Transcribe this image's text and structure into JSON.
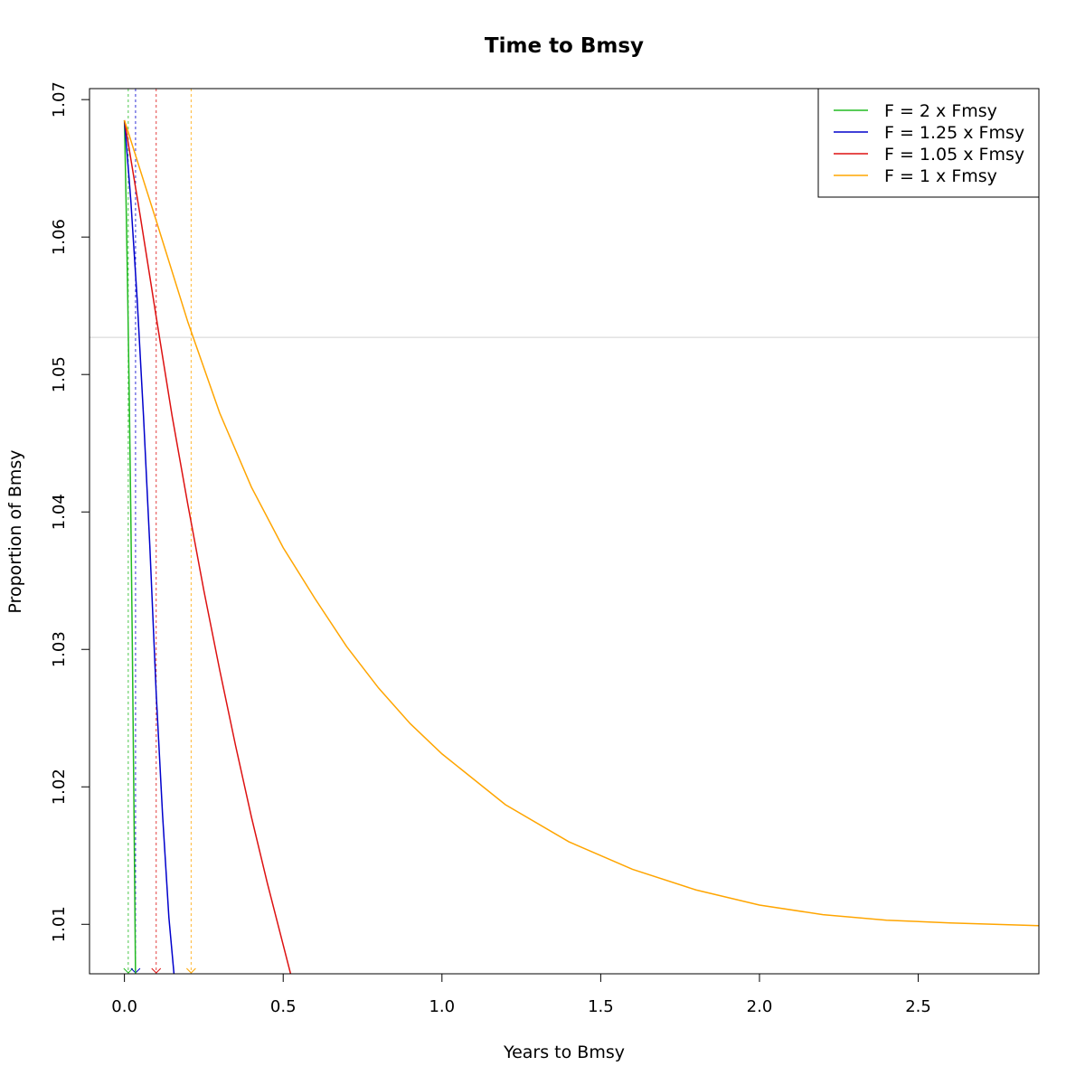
{
  "chart_data": {
    "type": "line",
    "title": "Time to Bmsy",
    "xlabel": "Years to Bmsy",
    "ylabel": "Proportion of Bmsy",
    "xlim": [
      -0.11,
      2.88
    ],
    "ylim": [
      1.0064,
      1.0708
    ],
    "x_ticks": [
      0.0,
      0.5,
      1.0,
      1.5,
      2.0,
      2.5
    ],
    "x_tick_labels": [
      "0.0",
      "0.5",
      "1.0",
      "1.5",
      "2.0",
      "2.5"
    ],
    "y_ticks": [
      1.01,
      1.02,
      1.03,
      1.04,
      1.05,
      1.06,
      1.07
    ],
    "y_tick_labels": [
      "1.01",
      "1.02",
      "1.03",
      "1.04",
      "1.05",
      "1.06",
      "1.07"
    ],
    "grid": false,
    "legend_position": "top-right",
    "reference_line": {
      "y": 1.0527,
      "color": "#d3d3d3"
    },
    "series": [
      {
        "name": "F = 2 x Fmsy",
        "color": "#22bb22",
        "x": [
          0.0,
          0.005,
          0.01,
          0.015,
          0.02,
          0.025,
          0.03,
          0.035,
          0.0375
        ],
        "y": [
          1.0685,
          1.0628,
          1.0562,
          1.0487,
          1.04,
          1.03,
          1.0185,
          1.006,
          1.0064
        ],
        "time_to_bmsy": 0.012
      },
      {
        "name": "F = 1.25 x Fmsy",
        "color": "#0000cc",
        "x": [
          0.0,
          0.02,
          0.04,
          0.06,
          0.08,
          0.1,
          0.12,
          0.14,
          0.156
        ],
        "y": [
          1.0685,
          1.0627,
          1.0555,
          1.047,
          1.0375,
          1.0268,
          1.018,
          1.0105,
          1.0064
        ],
        "time_to_bmsy": 0.035
      },
      {
        "name": "F = 1.05 x Fmsy",
        "color": "#dd1111",
        "x": [
          0.0,
          0.05,
          0.1,
          0.15,
          0.2,
          0.25,
          0.3,
          0.35,
          0.4,
          0.45,
          0.5,
          0.55,
          0.585
        ],
        "y": [
          1.0685,
          1.0615,
          1.0542,
          1.047,
          1.0405,
          1.0343,
          1.0285,
          1.023,
          1.0178,
          1.013,
          1.0085,
          1.004,
          1.0064
        ],
        "time_to_bmsy": 0.1
      },
      {
        "name": "F = 1 x Fmsy",
        "color": "#ffa500",
        "x": [
          0.0,
          0.1,
          0.2,
          0.3,
          0.4,
          0.5,
          0.6,
          0.7,
          0.8,
          0.9,
          1.0,
          1.2,
          1.4,
          1.6,
          1.8,
          2.0,
          2.2,
          2.4,
          2.6,
          2.88
        ],
        "y": [
          1.0685,
          1.0612,
          1.0538,
          1.0472,
          1.0418,
          1.0374,
          1.0337,
          1.0302,
          1.0272,
          1.0246,
          1.0224,
          1.0187,
          1.016,
          1.014,
          1.0125,
          1.0114,
          1.0107,
          1.0103,
          1.0101,
          1.0099
        ],
        "time_to_bmsy": 0.21
      }
    ]
  }
}
